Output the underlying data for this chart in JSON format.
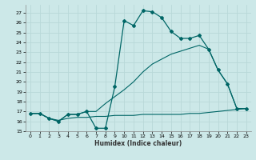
{
  "xlabel": "Humidex (Indice chaleur)",
  "bg_color": "#cce8e8",
  "grid_color": "#b0d0d0",
  "line_color": "#006666",
  "xlim": [
    -0.5,
    23.5
  ],
  "ylim": [
    15.0,
    27.8
  ],
  "yticks": [
    15,
    16,
    17,
    18,
    19,
    20,
    21,
    22,
    23,
    24,
    25,
    26,
    27
  ],
  "xticks": [
    0,
    1,
    2,
    3,
    4,
    5,
    6,
    7,
    8,
    9,
    10,
    11,
    12,
    13,
    14,
    15,
    16,
    17,
    18,
    19,
    20,
    21,
    22,
    23
  ],
  "line1_x": [
    0,
    1,
    2,
    3,
    4,
    5,
    6,
    7,
    8,
    9,
    10,
    11,
    12,
    13,
    14,
    15,
    16,
    17,
    18,
    19,
    20,
    21,
    22,
    23
  ],
  "line1_y": [
    16.8,
    16.8,
    16.3,
    16.0,
    16.7,
    16.7,
    17.0,
    15.3,
    15.3,
    19.5,
    26.2,
    25.7,
    27.2,
    27.1,
    26.5,
    25.1,
    24.4,
    24.4,
    24.7,
    23.3,
    21.2,
    19.8,
    17.3,
    17.3
  ],
  "line2_x": [
    0,
    1,
    2,
    3,
    4,
    5,
    6,
    7,
    8,
    9,
    10,
    11,
    12,
    13,
    14,
    15,
    16,
    17,
    18,
    19,
    20,
    21,
    22,
    23
  ],
  "line2_y": [
    16.8,
    16.8,
    16.3,
    16.0,
    16.7,
    16.7,
    17.0,
    17.0,
    17.8,
    18.5,
    19.2,
    20.0,
    21.0,
    21.8,
    22.3,
    22.8,
    23.1,
    23.4,
    23.7,
    23.3,
    21.2,
    19.8,
    17.3,
    17.3
  ],
  "line3_x": [
    0,
    1,
    2,
    3,
    4,
    5,
    6,
    7,
    8,
    9,
    10,
    11,
    12,
    13,
    14,
    15,
    16,
    17,
    18,
    19,
    20,
    21,
    22,
    23
  ],
  "line3_y": [
    16.8,
    16.8,
    16.3,
    16.1,
    16.3,
    16.4,
    16.4,
    16.5,
    16.5,
    16.6,
    16.6,
    16.6,
    16.7,
    16.7,
    16.7,
    16.7,
    16.7,
    16.8,
    16.8,
    16.9,
    17.0,
    17.1,
    17.2,
    17.3
  ]
}
